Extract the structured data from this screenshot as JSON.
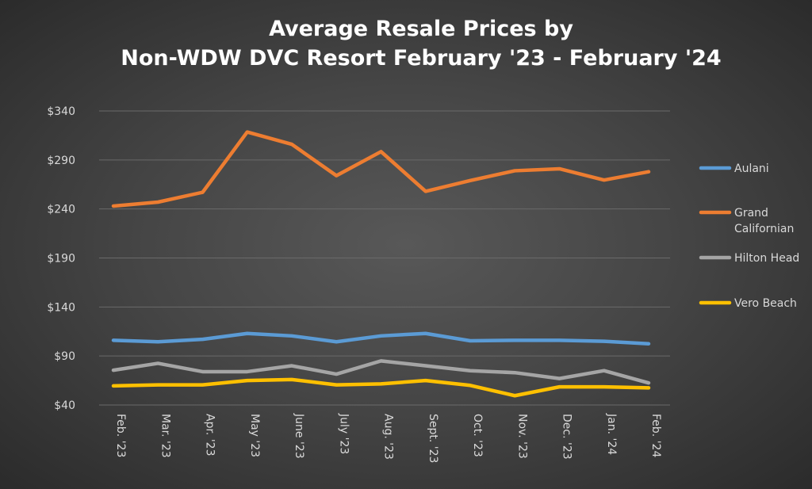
{
  "chart_data": {
    "type": "line",
    "title": [
      "Average Resale Prices by",
      "Non-WDW DVC Resort February '23 - February '24"
    ],
    "categories": [
      "Feb. '23",
      "Mar. '23",
      "Apr. '23",
      "May '23",
      "June '23",
      "July '23",
      "Aug. '23",
      "Sept. '23",
      "Oct. '23",
      "Nov. '23",
      "Dec. '23",
      "Jan. '24",
      "Feb. '24"
    ],
    "ylim": [
      40,
      340
    ],
    "yticks": [
      40,
      90,
      140,
      190,
      240,
      290,
      340
    ],
    "ytick_labels": [
      "$40",
      "$90",
      "$140",
      "$190",
      "$240",
      "$290",
      "$340"
    ],
    "grid": true,
    "legend_position": "right",
    "series": [
      {
        "name": "Aulani",
        "legend_lines": [
          "Aulani"
        ],
        "color": "#5b9bd5",
        "values": [
          106,
          104.5,
          107,
          113,
          110.5,
          104.5,
          110.5,
          113,
          105.5,
          106,
          106,
          105,
          102.5
        ]
      },
      {
        "name": "Grand Californian",
        "legend_lines": [
          "Grand",
          "Californian"
        ],
        "color": "#ed7d31",
        "values": [
          243,
          247,
          257,
          318.5,
          306,
          274,
          298.5,
          258,
          269,
          279,
          281,
          269.5,
          278
        ]
      },
      {
        "name": "Hilton Head",
        "legend_lines": [
          "Hilton Head"
        ],
        "color": "#a5a5a5",
        "values": [
          75.5,
          82.5,
          74,
          74,
          80,
          71.5,
          85,
          80,
          75,
          73,
          67,
          75,
          62.5
        ]
      },
      {
        "name": "Vero Beach",
        "legend_lines": [
          "Vero Beach"
        ],
        "color": "#ffc000",
        "values": [
          59.5,
          60.5,
          60.5,
          65,
          66,
          60.5,
          61.5,
          65,
          60,
          49.5,
          58.5,
          58.5,
          57.5
        ]
      }
    ]
  }
}
